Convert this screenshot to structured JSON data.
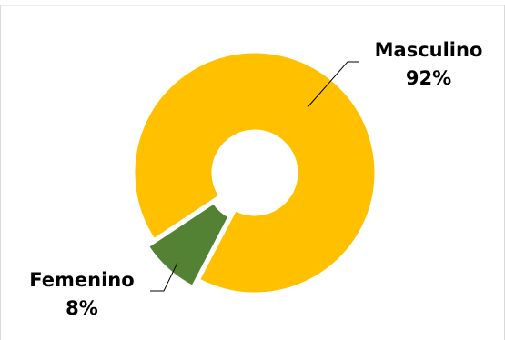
{
  "chart_data": {
    "type": "pie",
    "variant": "doughnut",
    "title": "",
    "slices": [
      {
        "label": "Masculino",
        "percent_label": "92%",
        "value": 92,
        "color": "#FFC000"
      },
      {
        "label": "Femenino",
        "percent_label": "8%",
        "value": 8,
        "color": "#548235"
      }
    ],
    "legend": "none",
    "data_labels": "outside-with-leader-lines"
  }
}
